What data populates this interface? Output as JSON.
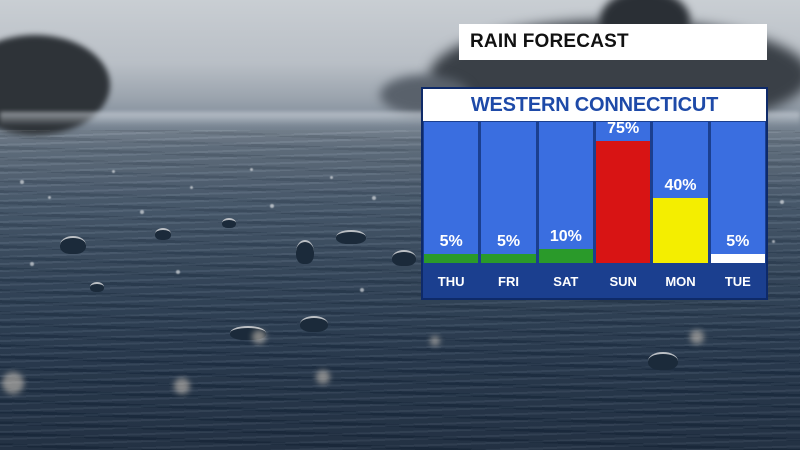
{
  "title": "RAIN FORECAST",
  "chart_data": {
    "type": "bar",
    "title": "WESTERN CONNECTICUT",
    "categories": [
      "THU",
      "FRI",
      "SAT",
      "SUN",
      "MON",
      "TUE"
    ],
    "values": [
      5,
      5,
      10,
      75,
      40,
      5
    ],
    "labels": [
      "5%",
      "5%",
      "10%",
      "75%",
      "40%",
      "5%"
    ],
    "colors": [
      "#2a9a2a",
      "#2a9a2a",
      "#2a9a2a",
      "#d81414",
      "#f4ee00",
      "#ffffff"
    ],
    "unit": "%",
    "ylim": [
      0,
      100
    ],
    "column_color": "#3a6ee0",
    "panel_color": "#1b3f8f",
    "title_color": "#1e4aa8"
  }
}
